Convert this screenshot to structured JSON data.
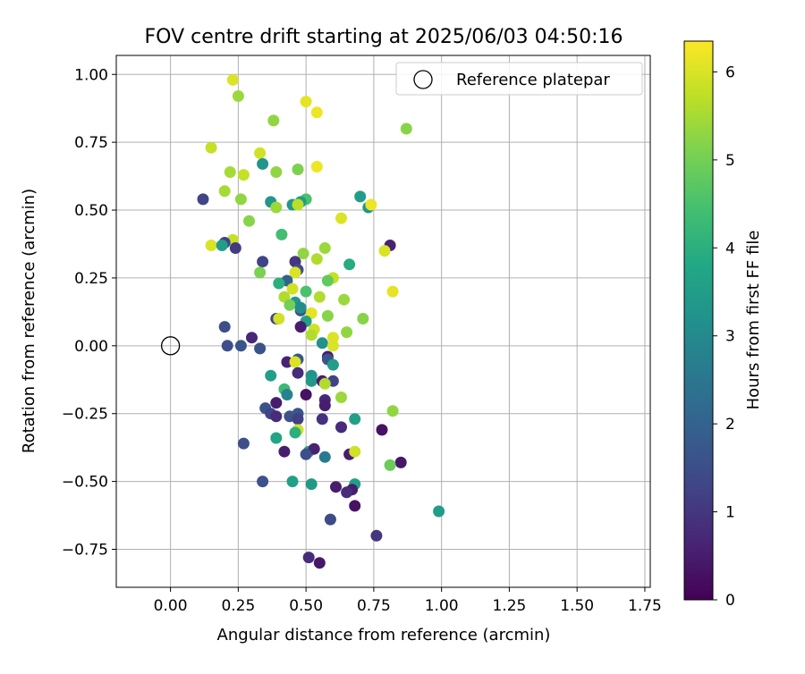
{
  "chart_data": {
    "type": "scatter",
    "title": "FOV centre drift starting at 2025/06/03 04:50:16",
    "xlabel": "Angular distance from reference (arcmin)",
    "ylabel": "Rotation from reference (arcmin)",
    "xlim": [
      -0.2,
      1.77
    ],
    "ylim": [
      -0.89,
      1.07
    ],
    "xticks": [
      0.0,
      0.25,
      0.5,
      0.75,
      1.0,
      1.25,
      1.5,
      1.75
    ],
    "xtick_labels": [
      "0.00",
      "0.25",
      "0.50",
      "0.75",
      "1.00",
      "1.25",
      "1.50",
      "1.75"
    ],
    "yticks": [
      -0.75,
      -0.5,
      -0.25,
      0.0,
      0.25,
      0.5,
      0.75,
      1.0
    ],
    "ytick_labels": [
      "−0.75",
      "−0.50",
      "−0.25",
      "0.00",
      "0.25",
      "0.50",
      "0.75",
      "1.00"
    ],
    "grid": true,
    "legend": {
      "position": "top-right",
      "entries": [
        {
          "label": "Reference platepar",
          "marker": "open-circle"
        }
      ]
    },
    "reference_point": {
      "x": 0.0,
      "y": 0.0
    },
    "colorbar": {
      "label": "Hours from first FF file",
      "min": 0,
      "max": 6.35,
      "ticks": [
        0,
        1,
        2,
        3,
        4,
        5,
        6
      ],
      "colormap": "viridis"
    },
    "points": [
      {
        "x": 0.23,
        "y": 0.98,
        "h": 6.0
      },
      {
        "x": 0.25,
        "y": 0.92,
        "h": 5.4
      },
      {
        "x": 0.5,
        "y": 0.9,
        "h": 6.1
      },
      {
        "x": 0.54,
        "y": 0.86,
        "h": 6.2
      },
      {
        "x": 0.38,
        "y": 0.83,
        "h": 5.3
      },
      {
        "x": 0.87,
        "y": 0.8,
        "h": 5.2
      },
      {
        "x": 0.15,
        "y": 0.73,
        "h": 5.8
      },
      {
        "x": 0.33,
        "y": 0.71,
        "h": 5.9
      },
      {
        "x": 0.34,
        "y": 0.67,
        "h": 3.3
      },
      {
        "x": 0.54,
        "y": 0.66,
        "h": 6.2
      },
      {
        "x": 0.47,
        "y": 0.65,
        "h": 5.1
      },
      {
        "x": 0.22,
        "y": 0.64,
        "h": 5.5
      },
      {
        "x": 0.39,
        "y": 0.64,
        "h": 5.3
      },
      {
        "x": 0.27,
        "y": 0.63,
        "h": 5.8
      },
      {
        "x": 0.2,
        "y": 0.57,
        "h": 5.5
      },
      {
        "x": 0.7,
        "y": 0.55,
        "h": 3.5
      },
      {
        "x": 0.12,
        "y": 0.54,
        "h": 1.3
      },
      {
        "x": 0.26,
        "y": 0.54,
        "h": 5.3
      },
      {
        "x": 0.5,
        "y": 0.54,
        "h": 4.5
      },
      {
        "x": 0.37,
        "y": 0.53,
        "h": 3.3
      },
      {
        "x": 0.48,
        "y": 0.53,
        "h": 3.5
      },
      {
        "x": 0.45,
        "y": 0.52,
        "h": 3.4
      },
      {
        "x": 0.73,
        "y": 0.51,
        "h": 3.3
      },
      {
        "x": 0.74,
        "y": 0.52,
        "h": 6.2
      },
      {
        "x": 0.47,
        "y": 0.52,
        "h": 5.7
      },
      {
        "x": 0.39,
        "y": 0.51,
        "h": 5.4
      },
      {
        "x": 0.63,
        "y": 0.47,
        "h": 6.0
      },
      {
        "x": 0.29,
        "y": 0.46,
        "h": 5.2
      },
      {
        "x": 0.41,
        "y": 0.41,
        "h": 4.4
      },
      {
        "x": 0.23,
        "y": 0.39,
        "h": 5.8
      },
      {
        "x": 0.2,
        "y": 0.38,
        "h": 1.3
      },
      {
        "x": 0.15,
        "y": 0.37,
        "h": 6.0
      },
      {
        "x": 0.19,
        "y": 0.37,
        "h": 3.5
      },
      {
        "x": 0.81,
        "y": 0.37,
        "h": 0.6
      },
      {
        "x": 0.24,
        "y": 0.36,
        "h": 1.1
      },
      {
        "x": 0.57,
        "y": 0.36,
        "h": 5.4
      },
      {
        "x": 0.49,
        "y": 0.34,
        "h": 5.3
      },
      {
        "x": 0.79,
        "y": 0.35,
        "h": 6.0
      },
      {
        "x": 0.54,
        "y": 0.32,
        "h": 5.6
      },
      {
        "x": 0.34,
        "y": 0.31,
        "h": 1.3
      },
      {
        "x": 0.46,
        "y": 0.31,
        "h": 1.0
      },
      {
        "x": 0.66,
        "y": 0.3,
        "h": 3.9
      },
      {
        "x": 0.33,
        "y": 0.27,
        "h": 5.1
      },
      {
        "x": 0.47,
        "y": 0.28,
        "h": 1.5
      },
      {
        "x": 0.46,
        "y": 0.27,
        "h": 6.0
      },
      {
        "x": 0.6,
        "y": 0.25,
        "h": 5.8
      },
      {
        "x": 0.43,
        "y": 0.24,
        "h": 2.0
      },
      {
        "x": 0.4,
        "y": 0.23,
        "h": 4.0
      },
      {
        "x": 0.58,
        "y": 0.24,
        "h": 4.8
      },
      {
        "x": 0.82,
        "y": 0.2,
        "h": 6.1
      },
      {
        "x": 0.45,
        "y": 0.21,
        "h": 5.9
      },
      {
        "x": 0.42,
        "y": 0.18,
        "h": 5.6
      },
      {
        "x": 0.5,
        "y": 0.2,
        "h": 4.5
      },
      {
        "x": 0.55,
        "y": 0.18,
        "h": 5.6
      },
      {
        "x": 0.64,
        "y": 0.17,
        "h": 5.4
      },
      {
        "x": 0.46,
        "y": 0.16,
        "h": 3.3
      },
      {
        "x": 0.44,
        "y": 0.15,
        "h": 5.0
      },
      {
        "x": 0.48,
        "y": 0.13,
        "h": 1.6
      },
      {
        "x": 0.48,
        "y": 0.14,
        "h": 3.1
      },
      {
        "x": 0.52,
        "y": 0.12,
        "h": 6.1
      },
      {
        "x": 0.39,
        "y": 0.1,
        "h": 1.3
      },
      {
        "x": 0.4,
        "y": 0.1,
        "h": 5.9
      },
      {
        "x": 0.58,
        "y": 0.11,
        "h": 5.2
      },
      {
        "x": 0.71,
        "y": 0.1,
        "h": 5.2
      },
      {
        "x": 0.5,
        "y": 0.09,
        "h": 3.6
      },
      {
        "x": 0.48,
        "y": 0.07,
        "h": 0.5
      },
      {
        "x": 0.53,
        "y": 0.06,
        "h": 5.9
      },
      {
        "x": 0.65,
        "y": 0.05,
        "h": 5.3
      },
      {
        "x": 0.52,
        "y": 0.04,
        "h": 5.6
      },
      {
        "x": 0.6,
        "y": 0.03,
        "h": 6.0
      },
      {
        "x": 0.2,
        "y": 0.07,
        "h": 1.5
      },
      {
        "x": 0.3,
        "y": 0.03,
        "h": 0.7
      },
      {
        "x": 0.56,
        "y": 0.01,
        "h": 3.2
      },
      {
        "x": 0.6,
        "y": 0.0,
        "h": 6.0
      },
      {
        "x": 0.21,
        "y": 0.0,
        "h": 1.5
      },
      {
        "x": 0.26,
        "y": 0.0,
        "h": 1.7
      },
      {
        "x": 0.33,
        "y": -0.01,
        "h": 1.6
      },
      {
        "x": 0.58,
        "y": -0.04,
        "h": 0.5
      },
      {
        "x": 0.58,
        "y": -0.05,
        "h": 1.7
      },
      {
        "x": 0.47,
        "y": -0.05,
        "h": 1.7
      },
      {
        "x": 0.43,
        "y": -0.06,
        "h": 0.6
      },
      {
        "x": 0.46,
        "y": -0.06,
        "h": 6.0
      },
      {
        "x": 0.6,
        "y": -0.07,
        "h": 3.5
      },
      {
        "x": 0.47,
        "y": -0.1,
        "h": 0.8
      },
      {
        "x": 0.37,
        "y": -0.11,
        "h": 3.6
      },
      {
        "x": 0.52,
        "y": -0.11,
        "h": 3.2
      },
      {
        "x": 0.52,
        "y": -0.13,
        "h": 3.4
      },
      {
        "x": 0.56,
        "y": -0.13,
        "h": 0.5
      },
      {
        "x": 0.6,
        "y": -0.13,
        "h": 1.3
      },
      {
        "x": 0.57,
        "y": -0.14,
        "h": 5.6
      },
      {
        "x": 0.42,
        "y": -0.16,
        "h": 4.3
      },
      {
        "x": 0.43,
        "y": -0.18,
        "h": 2.8
      },
      {
        "x": 0.5,
        "y": -0.18,
        "h": 0.3
      },
      {
        "x": 0.63,
        "y": -0.19,
        "h": 5.4
      },
      {
        "x": 0.39,
        "y": -0.21,
        "h": 0.5
      },
      {
        "x": 0.57,
        "y": -0.2,
        "h": 0.7
      },
      {
        "x": 0.57,
        "y": -0.22,
        "h": 0.5
      },
      {
        "x": 0.35,
        "y": -0.23,
        "h": 1.6
      },
      {
        "x": 0.37,
        "y": -0.25,
        "h": 1.3
      },
      {
        "x": 0.39,
        "y": -0.26,
        "h": 0.8
      },
      {
        "x": 0.44,
        "y": -0.26,
        "h": 1.6
      },
      {
        "x": 0.47,
        "y": -0.25,
        "h": 1.7
      },
      {
        "x": 0.47,
        "y": -0.27,
        "h": 1.2
      },
      {
        "x": 0.56,
        "y": -0.27,
        "h": 0.9
      },
      {
        "x": 0.68,
        "y": -0.27,
        "h": 3.6
      },
      {
        "x": 0.63,
        "y": -0.3,
        "h": 0.8
      },
      {
        "x": 0.47,
        "y": -0.31,
        "h": 5.9
      },
      {
        "x": 0.46,
        "y": -0.32,
        "h": 4.0
      },
      {
        "x": 0.78,
        "y": -0.31,
        "h": 0.3
      },
      {
        "x": 0.82,
        "y": -0.24,
        "h": 5.3
      },
      {
        "x": 0.39,
        "y": -0.34,
        "h": 3.7
      },
      {
        "x": 0.27,
        "y": -0.36,
        "h": 1.5
      },
      {
        "x": 0.42,
        "y": -0.39,
        "h": 0.5
      },
      {
        "x": 0.51,
        "y": -0.39,
        "h": 3.6
      },
      {
        "x": 0.53,
        "y": -0.38,
        "h": 0.6
      },
      {
        "x": 0.5,
        "y": -0.4,
        "h": 1.5
      },
      {
        "x": 0.57,
        "y": -0.41,
        "h": 2.6
      },
      {
        "x": 0.66,
        "y": -0.4,
        "h": 0.5
      },
      {
        "x": 0.68,
        "y": -0.39,
        "h": 5.9
      },
      {
        "x": 0.85,
        "y": -0.43,
        "h": 0.4
      },
      {
        "x": 0.81,
        "y": -0.44,
        "h": 4.9
      },
      {
        "x": 0.34,
        "y": -0.5,
        "h": 1.6
      },
      {
        "x": 0.45,
        "y": -0.5,
        "h": 3.6
      },
      {
        "x": 0.52,
        "y": -0.51,
        "h": 3.4
      },
      {
        "x": 0.61,
        "y": -0.52,
        "h": 0.5
      },
      {
        "x": 0.68,
        "y": -0.51,
        "h": 3.6
      },
      {
        "x": 0.67,
        "y": -0.53,
        "h": 0.5
      },
      {
        "x": 0.65,
        "y": -0.54,
        "h": 0.8
      },
      {
        "x": 0.99,
        "y": -0.61,
        "h": 3.5
      },
      {
        "x": 0.68,
        "y": -0.59,
        "h": 0.3
      },
      {
        "x": 0.59,
        "y": -0.64,
        "h": 1.4
      },
      {
        "x": 0.76,
        "y": -0.7,
        "h": 1.0
      },
      {
        "x": 0.51,
        "y": -0.78,
        "h": 0.8
      },
      {
        "x": 0.55,
        "y": -0.8,
        "h": 0.4
      }
    ]
  }
}
